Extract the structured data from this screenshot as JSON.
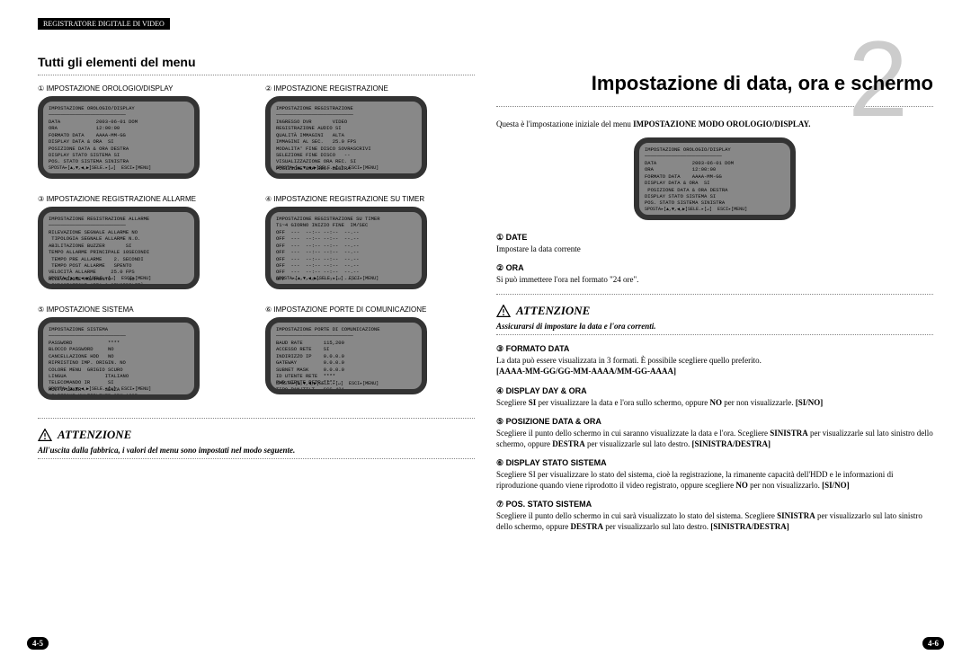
{
  "header_bar": "REGISTRATORE DIGITALE DI VIDEO",
  "left": {
    "section_title": "Tutti gli elementi del menu",
    "page_num": "4-5",
    "menus": [
      {
        "idx": "①",
        "label": "IMPOSTAZIONE  OROLOGIO/DISPLAY",
        "screen": "IMPOSTAZIONE OROLOGIO/DISPLAY\n──────────────────────────\nDATA            2003-06-01 DOM\nORA             12:00:00\nFORMATO DATA    AAAA-MM-GG\nDISPLAY DATA & ORA  SI\nPOSIZIONE DATA & ORA DESTRA\nDISPLAY STATO SISTEMA SI\nPOS. STATO SISTEMA SINISTRA",
        "footer": "SPOSTA▸[▲,▼,◀,▶]SELE.▸[↵]  ESCI▸[MENU]"
      },
      {
        "idx": "②",
        "label": "IMPOSTAZIONE REGISTRAZIONE",
        "screen": "IMPOSTAZIONE REGISTRAZIONE\n──────────────────────────\nINGRESSO DVR       VIDEO\nREGISTRAZIONE AUDIO SI\nQUALITÀ IMMAGINI   ALTA\nIMMAGINI AL SEC.   25.0 FPS\nMODALITA' FINE DISCO SOVRASCRIVI\nSELEZIONE FINE DISCO   --\nVISUALIZZAZIONE ORA REC. SI\nPOSIZIONE ORA REC. DESTRA",
        "footer": "SPOSTA▸[▲,▼,◀,▶]SELE.▸[↵]  ESCI▸[MENU]"
      },
      {
        "idx": "③",
        "label": "IMPOSTAZIONE REGISTRAZIONE ALLARME",
        "screen": "IMPOSTAZIONE REGISTRAZIONE ALLARME\n──────────────────────────\nRILEVAZIONE SEGNALE ALLARME NO\n TIPOLOGIA SEGNALE ALLARME N.O.\nABILITAZIONE BUZZER       SI\nTEMPO ALLARME PRINCIPALE 10SECONDI\n TEMPO PRE ALLARME    2. SECONDI\n TEMPO POST ALLARME   SPENTO\nVELOCITÀ ALLARME     25.0 FPS\nRILEVAZIONE MOVIMENTO      NO\n IMPOSTAZIONE AREA & SENSIBILITÀ",
        "footer": "SPOSTA▸[▲,▼,◀,▶]SELE.▸[↵]  ESCI▸[MENU]"
      },
      {
        "idx": "④",
        "label": "IMPOSTAZIONE REGISTRAZIONE SU TIMER",
        "screen": "IMPOSTAZIONE REGISTRAZIONE SU TIMER\nT1~4 GIORNO INIZIO FINE  IM/SEC\nOFF  ---  --:-- --:--  --.--\nOFF  ---  --:-- --:--  --.--\nOFF  ---  --:-- --:--  --.--\nOFF  ---  --:-- --:--  --.--\nOFF  ---  --:-- --:--  --.--\nOFF  ---  --:-- --:--  --.--\nOFF  ---  --:-- --:--  --.--\nOFF  ---  --:-- --:--  --.--",
        "footer": "SPOSTA▸[▲,▼,◀,▶]SELE.▸[↵]  ESCI▸[MENU]"
      },
      {
        "idx": "⑤",
        "label": "IMPOSTAZIONE SISTEMA",
        "screen": "IMPOSTAZIONE SISTEMA\n──────────────────────────\nPASSWORD            ****\nBLOCCO PASSWORD     NO\nCANCELLAZIONE HDD   NO\nRIPRISTINO IMP. ORIGIN. NO\nCOLORE MENU  GRIGIO SCURO\nLINGUA             ITALIANO\nTELECOMANDO IR      SI\nMULTIPLEXER        SENZA\nSELEZIONE MULTIPLEXER SDM-160P",
        "footer": "SPOSTA▸[▲,▼,◀,▶]SELE.▸[↵]  ESCI▸[MENU]"
      },
      {
        "idx": "⑥",
        "label": "IMPOSTAZIONE PORTE DI COMUNICAZIONE",
        "screen": "IMPOSTAZIONE PORTE DI COMUNICAZIONE\n──────────────────────────\nBAUD RATE       115,200\nACCESSO RETE    SI\nINDIRIZZO IP    0.0.0.0\nGATEWAY         0.0.0.0\nSUBNET MASK     0.0.0.0\nID UTENTE RETE  ****\nPWD UTENTE RETE ****\nTIPO PAN/TILT   SCC-421",
        "footer": "SPOSTA▸[▲,▼,◀,▶]SELE.▸[↵]  ESCI▸[MENU]"
      }
    ],
    "attention_title": "ATTENZIONE",
    "attention_text": "All'uscita dalla fabbrica, i valori del menu sono impostati nel modo seguente."
  },
  "right": {
    "big_number": "2",
    "main_title": "Impostazione di data, ora e schermo",
    "page_num": "4-6",
    "intro_pre": "Questa è l'impostazione iniziale del menu ",
    "intro_bold": "IMPOSTAZIONE MODO OROLOGIO/DISPLAY.",
    "screen": "IMPOSTAZIONE OROLOGIO/DISPLAY\n──────────────────────────\nDATA            2003-06-01 DOM\nORA             12:00:00\nFORMATO DATA    AAAA-MM-GG\nDISPLAY DATA & ORA  SI\n POSIZIONE DATA & ORA DESTRA\nDISPLAY STATO SISTEMA SI\nPOS. STATO SISTEMA SINISTRA",
    "screen_footer": "SPOSTA▸[▲,▼,◀,▶]SELE.▸[↵]  ESCI▸[MENU]",
    "items": [
      {
        "idx": "①",
        "title": "DATE",
        "body": "Impostare la data corrente"
      },
      {
        "idx": "②",
        "title": "ORA",
        "body": "Si può immettere l'ora nel formato \"24 ore\"."
      }
    ],
    "attention_title": "ATTENZIONE",
    "attention_text": "Assicurarsi di impostare la data e l'ora correnti.",
    "items2": [
      {
        "idx": "③",
        "title": "FORMATO  DATA",
        "body": "La data può essere visualizzata in 3 formati. È possibile scegliere quello preferito.",
        "bold": "[AAAA-MM-GG/GG-MM-AAAA/MM-GG-AAAA]"
      },
      {
        "idx": "④",
        "title": "DISPLAY DAY & ORA",
        "body_html": "Scegliere <b>SI</b> per visualizzare la data e l'ora sullo schermo, oppure <b>NO</b> per non visualizzarle. <b>[SI/NO]</b>"
      },
      {
        "idx": "⑤",
        "title": "POSIZIONE DATA & ORA",
        "body_html": "Scegliere il punto dello schermo in cui saranno visualizzate la data e l'ora. Scegliere <b>SINISTRA</b> per visualizzarle sul lato sinistro dello schermo, oppure <b>DESTRA</b> per visualizzarle sul lato destro. <b>[SINISTRA/DESTRA]</b>"
      },
      {
        "idx": "⑥",
        "title": "DISPLAY STATO SISTEMA",
        "body_html": "Scegliere SI per visualizzare lo stato del sistema, cioè la registrazione, la rimanente capacità dell'HDD e le informazioni di riproduzione quando viene riprodotto il video registrato, oppure scegliere <b>NO</b> per non visualizzarlo.  <b>[SI/NO]</b>"
      },
      {
        "idx": "⑦",
        "title": "POS. STATO SISTEMA",
        "body_html": "Scegliere il punto dello schermo in cui sarà visualizzato lo stato del sistema. Scegliere <b>SINISTRA</b> per visualizzarlo sul lato sinistro dello schermo, oppure <b>DESTRA</b> per visualizzarlo sul lato destro. <b>[SINISTRA/DESTRA]</b>"
      }
    ]
  }
}
